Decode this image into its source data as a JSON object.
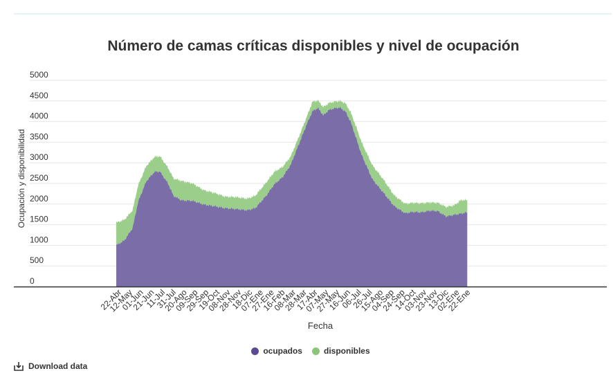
{
  "title": "Número de camas críticas disponibles y nivel de ocupación",
  "download_label": "Download data",
  "colors": {
    "ocupados": "#7b6ea8",
    "disponibles": "#9bce8a",
    "ocupados_legend": "#5a4a93",
    "disponibles_legend": "#8dc47a",
    "grid": "#e6e6e6",
    "axis": "#333333",
    "text": "#333333"
  },
  "icons": {
    "download": "download-icon"
  },
  "chart_data": {
    "type": "area",
    "stacked": true,
    "title": "Número de camas críticas disponibles y nivel de ocupación",
    "xlabel": "Fecha",
    "ylabel": "Ocupación y disponibilidad",
    "ylim": [
      0,
      5000
    ],
    "y_ticks": [
      0,
      500,
      1000,
      1500,
      2000,
      2500,
      3000,
      3500,
      4000,
      4500,
      5000
    ],
    "x_tick_labels": [
      "22-Abr",
      "12-May",
      "01-Jun",
      "21-Jun",
      "11-Jul",
      "31-Jul",
      "20-Ago",
      "09-Sep",
      "29-Sep",
      "19-Oct",
      "08-Nov",
      "28-Nov",
      "18-Dic",
      "07-Ene",
      "27-Ene",
      "16-Feb",
      "08-Mar",
      "28-Mar",
      "17-Abr",
      "07-May",
      "27-May",
      "16-Jun",
      "06-Jul",
      "26-Jul",
      "15-Ago",
      "04-Sep",
      "24-Sep",
      "14-Oct",
      "03-Nov",
      "23-Nov",
      "13-Dic",
      "02-Ene",
      "22-Ene"
    ],
    "x_tick_index": [
      0,
      20,
      40,
      60,
      80,
      100,
      120,
      140,
      160,
      180,
      200,
      220,
      240,
      260,
      280,
      300,
      320,
      340,
      360,
      380,
      400,
      420,
      440,
      460,
      480,
      500,
      520,
      540,
      560,
      580,
      600,
      620,
      640
    ],
    "x_domain_days": [
      -160,
      900
    ],
    "legend_position": "bottom",
    "grid": true,
    "x_keypoints": [
      0,
      15,
      30,
      40,
      55,
      70,
      80,
      95,
      105,
      120,
      140,
      160,
      180,
      200,
      220,
      240,
      255,
      275,
      290,
      305,
      320,
      335,
      350,
      360,
      370,
      380,
      390,
      400,
      410,
      420,
      430,
      440,
      450,
      460,
      470,
      490,
      510,
      530,
      545,
      560,
      575,
      590,
      605,
      620,
      633,
      644
    ],
    "series": [
      {
        "name": "ocupados",
        "values": [
          1000,
          1120,
          1420,
          2050,
          2550,
          2780,
          2790,
          2500,
          2200,
          2090,
          2080,
          1990,
          1950,
          1900,
          1880,
          1850,
          1900,
          2200,
          2480,
          2650,
          2950,
          3450,
          3950,
          4250,
          4330,
          4150,
          4280,
          4320,
          4340,
          4250,
          4000,
          3600,
          3200,
          2900,
          2600,
          2280,
          1950,
          1780,
          1810,
          1800,
          1840,
          1830,
          1700,
          1740,
          1770,
          1800
        ]
      },
      {
        "name": "disponibles",
        "values": [
          550,
          500,
          430,
          400,
          370,
          360,
          370,
          380,
          420,
          470,
          420,
          350,
          320,
          280,
          290,
          280,
          300,
          320,
          300,
          250,
          200,
          180,
          180,
          230,
          180,
          200,
          170,
          160,
          160,
          200,
          230,
          280,
          300,
          320,
          340,
          320,
          260,
          230,
          220,
          220,
          200,
          200,
          230,
          230,
          330,
          290
        ]
      }
    ]
  }
}
